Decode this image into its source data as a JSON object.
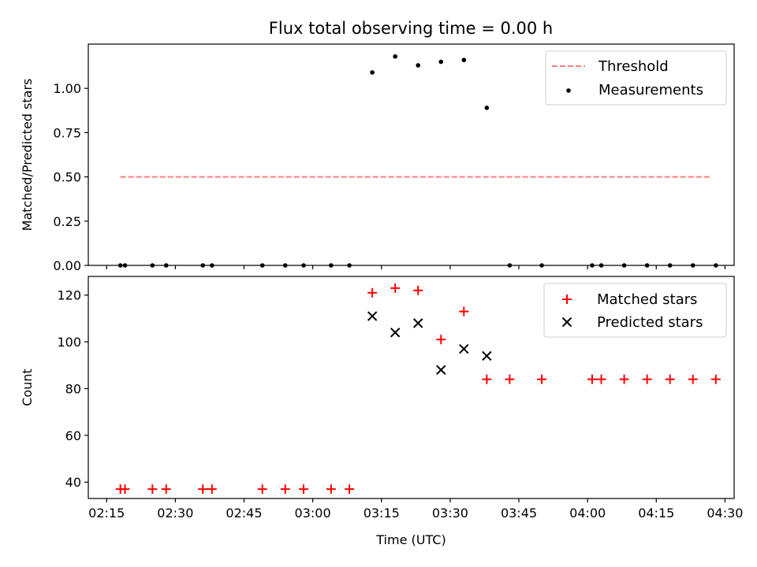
{
  "title": "Flux total observing time = 0.00 h",
  "chart_data": [
    {
      "type": "scatter",
      "ylabel": "Matched/Predicted stars",
      "ylim": [
        0,
        1.25
      ],
      "yticks": [
        0.0,
        0.25,
        0.5,
        0.75,
        1.0
      ],
      "ytick_labels": [
        "0.00",
        "0.25",
        "0.50",
        "0.75",
        "1.00"
      ],
      "xlim": [
        "02:11",
        "04:32"
      ],
      "threshold": {
        "name": "Threshold",
        "value": 0.5,
        "x_range": [
          "02:18",
          "04:27"
        ],
        "color": "#ff7f7f"
      },
      "series": [
        {
          "name": "Measurements",
          "color": "#000000",
          "x": [
            "02:18",
            "02:19",
            "02:25",
            "02:28",
            "02:36",
            "02:38",
            "02:49",
            "02:54",
            "02:58",
            "03:04",
            "03:08",
            "03:13",
            "03:18",
            "03:23",
            "03:28",
            "03:33",
            "03:38",
            "03:43",
            "03:50",
            "04:01",
            "04:03",
            "04:08",
            "04:13",
            "04:18",
            "04:23",
            "04:28"
          ],
          "y": [
            0,
            0,
            0,
            0,
            0,
            0,
            0,
            0,
            0,
            0,
            0,
            1.09,
            1.18,
            1.13,
            1.15,
            1.16,
            0.89,
            0,
            0,
            0,
            0,
            0,
            0,
            0,
            0,
            0
          ]
        }
      ],
      "legend": "top-right"
    },
    {
      "type": "scatter",
      "ylabel": "Count",
      "xlabel": "Time (UTC)",
      "ylim": [
        33,
        128
      ],
      "yticks": [
        40,
        60,
        80,
        100,
        120
      ],
      "ytick_labels": [
        "40",
        "60",
        "80",
        "100",
        "120"
      ],
      "xlim": [
        "02:11",
        "04:32"
      ],
      "xticks": [
        "02:15",
        "02:30",
        "02:45",
        "03:00",
        "03:15",
        "03:30",
        "03:45",
        "04:00",
        "04:15",
        "04:30"
      ],
      "series": [
        {
          "name": "Matched stars",
          "color": "#ff0000",
          "marker": "plus",
          "x": [
            "02:18",
            "02:19",
            "02:25",
            "02:28",
            "02:36",
            "02:38",
            "02:49",
            "02:54",
            "02:58",
            "03:04",
            "03:08",
            "03:13",
            "03:18",
            "03:23",
            "03:28",
            "03:33",
            "03:38",
            "03:43",
            "03:50",
            "04:01",
            "04:03",
            "04:08",
            "04:13",
            "04:18",
            "04:23",
            "04:28"
          ],
          "y": [
            37,
            37,
            37,
            37,
            37,
            37,
            37,
            37,
            37,
            37,
            37,
            121,
            123,
            122,
            101,
            113,
            84,
            84,
            84,
            84,
            84,
            84,
            84,
            84,
            84,
            84
          ]
        },
        {
          "name": "Predicted stars",
          "color": "#000000",
          "marker": "x",
          "x": [
            "03:13",
            "03:18",
            "03:23",
            "03:28",
            "03:33",
            "03:38"
          ],
          "y": [
            111,
            104,
            108,
            88,
            97,
            94
          ]
        }
      ],
      "legend": "top-right"
    }
  ]
}
